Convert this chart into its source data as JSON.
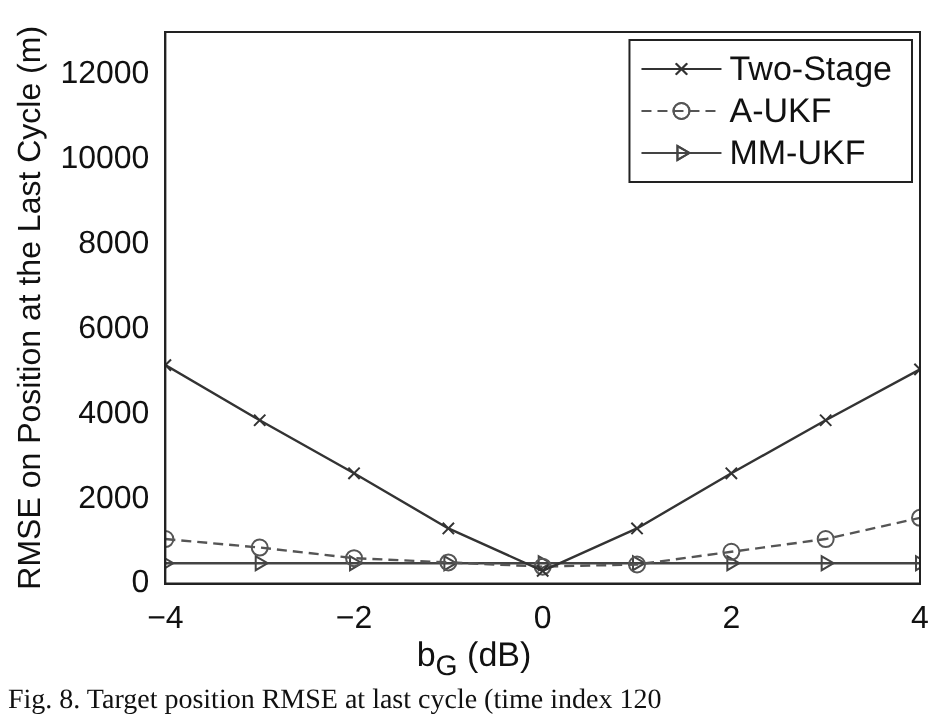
{
  "chart_data": {
    "type": "line",
    "xlabel": "b$_{G}$ (dB)",
    "ylabel": "RMSE on Position at the Last Cycle (m)",
    "x": [
      -4,
      -3,
      -2,
      -1,
      0,
      1,
      2,
      3,
      4
    ],
    "series": [
      {
        "name": "Two-Stage",
        "color": "#333333",
        "marker": "cross",
        "line_style": "solid",
        "values": [
          5150,
          3850,
          2600,
          1300,
          300,
          1300,
          2600,
          3850,
          5050
        ]
      },
      {
        "name": "A-UKF",
        "color": "#555555",
        "marker": "circle",
        "line_style": "dashed",
        "values": [
          1050,
          850,
          600,
          500,
          400,
          450,
          750,
          1050,
          1550
        ]
      },
      {
        "name": "MM-UKF",
        "color": "#444444",
        "marker": "triangle",
        "line_style": "solid",
        "values": [
          480,
          480,
          480,
          480,
          480,
          480,
          480,
          480,
          480
        ]
      }
    ],
    "xlim": [
      -4,
      4
    ],
    "xticks": [
      -4,
      -2,
      0,
      2,
      4
    ],
    "ylim": [
      0,
      13000
    ],
    "yticks": [
      0,
      2000,
      4000,
      6000,
      8000,
      10000,
      12000
    ],
    "grid": false,
    "legend": "top right",
    "annotations": [
      "Fig. 8.   Target position RMSE at last cycle (time index 120"
    ]
  }
}
